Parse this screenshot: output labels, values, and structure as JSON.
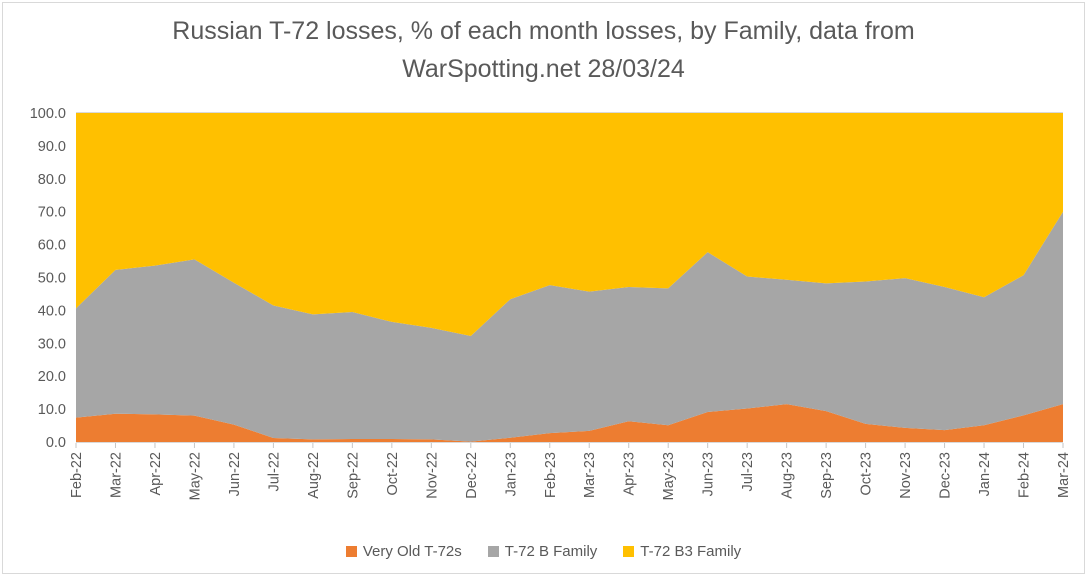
{
  "title": {
    "line1": "Russian T-72 losses, % of each month losses, by Family, data from",
    "line2": "WarSpotting.net 28/03/24"
  },
  "chart_data": {
    "type": "area",
    "stacked": true,
    "units": "percent",
    "title": "Russian T-72 losses, % of each month losses, by Family, data from WarSpotting.net 28/03/24",
    "categories": [
      "Feb-22",
      "Mar-22",
      "Apr-22",
      "May-22",
      "Jun-22",
      "Jul-22",
      "Aug-22",
      "Sep-22",
      "Oct-22",
      "Nov-22",
      "Dec-22",
      "Jan-23",
      "Feb-23",
      "Mar-23",
      "Apr-23",
      "May-23",
      "Jun-23",
      "Jul-23",
      "Aug-23",
      "Sep-23",
      "Oct-23",
      "Nov-23",
      "Dec-23",
      "Jan-24",
      "Feb-24",
      "Mar-24"
    ],
    "series": [
      {
        "name": "Very Old T-72s",
        "color": "#ED7D31",
        "values": [
          7.4,
          8.6,
          8.4,
          8.0,
          5.3,
          1.2,
          0.8,
          0.9,
          0.9,
          0.8,
          0.1,
          1.3,
          2.7,
          3.4,
          6.3,
          5.1,
          9.1,
          10.2,
          11.5,
          9.4,
          5.5,
          4.3,
          3.6,
          5.1,
          8.1,
          11.5
        ]
      },
      {
        "name": "T-72 B Family",
        "color": "#A6A6A6",
        "values": [
          33.2,
          43.7,
          45.2,
          47.5,
          43.1,
          40.3,
          38.0,
          38.6,
          35.6,
          33.9,
          32.1,
          42.1,
          45.0,
          42.3,
          40.8,
          41.6,
          48.6,
          40.1,
          37.8,
          38.8,
          43.3,
          45.5,
          43.5,
          38.9,
          42.6,
          58.5
        ]
      },
      {
        "name": "T-72 B3 Family",
        "color": "#FFC000",
        "values": [
          59.4,
          47.7,
          46.4,
          44.5,
          51.6,
          58.5,
          61.2,
          60.5,
          63.5,
          65.3,
          67.8,
          56.6,
          52.3,
          54.3,
          52.9,
          53.3,
          42.3,
          49.7,
          50.7,
          51.8,
          51.2,
          50.2,
          52.9,
          56.0,
          49.3,
          30.0
        ]
      }
    ],
    "ylim": [
      0,
      100
    ],
    "ytick_labels": [
      "0.0",
      "10.0",
      "20.0",
      "30.0",
      "40.0",
      "50.0",
      "60.0",
      "70.0",
      "80.0",
      "90.0",
      "100.0"
    ],
    "grid": false,
    "legend_position": "bottom",
    "axis_line_color": "#d9d9d9",
    "tick_color": "#c6c6c6",
    "text_color": "#595959"
  }
}
